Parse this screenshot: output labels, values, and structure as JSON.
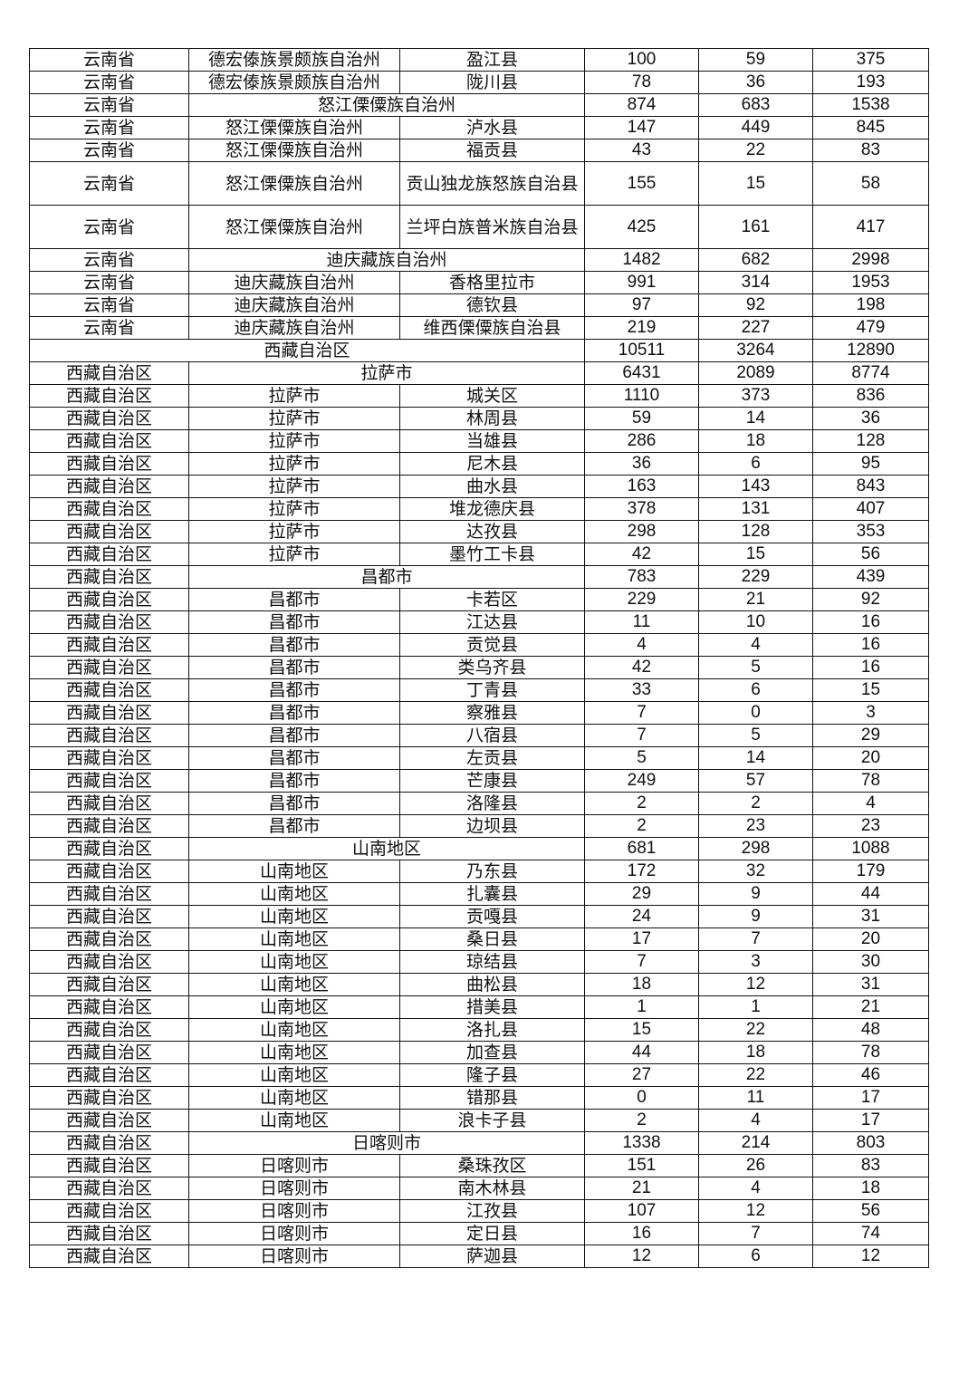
{
  "table": {
    "rows": [
      {
        "type": "full",
        "c": [
          "云南省",
          "德宏傣族景颇族自治州",
          "盈江县",
          "100",
          "59",
          "375"
        ]
      },
      {
        "type": "full",
        "c": [
          "云南省",
          "德宏傣族景颇族自治州",
          "陇川县",
          "78",
          "36",
          "193"
        ]
      },
      {
        "type": "span2",
        "c": [
          "云南省",
          "怒江傈僳族自治州",
          "874",
          "683",
          "1538"
        ]
      },
      {
        "type": "full",
        "c": [
          "云南省",
          "怒江傈僳族自治州",
          "泸水县",
          "147",
          "449",
          "845"
        ]
      },
      {
        "type": "full",
        "c": [
          "云南省",
          "怒江傈僳族自治州",
          "福贡县",
          "43",
          "22",
          "83"
        ]
      },
      {
        "type": "full",
        "tall": true,
        "c": [
          "云南省",
          "怒江傈僳族自治州",
          "贡山独龙族怒族自治县",
          "155",
          "15",
          "58"
        ]
      },
      {
        "type": "full",
        "tall": true,
        "c": [
          "云南省",
          "怒江傈僳族自治州",
          "兰坪白族普米族自治县",
          "425",
          "161",
          "417"
        ]
      },
      {
        "type": "span2",
        "c": [
          "云南省",
          "迪庆藏族自治州",
          "1482",
          "682",
          "2998"
        ]
      },
      {
        "type": "full",
        "c": [
          "云南省",
          "迪庆藏族自治州",
          "香格里拉市",
          "991",
          "314",
          "1953"
        ]
      },
      {
        "type": "full",
        "c": [
          "云南省",
          "迪庆藏族自治州",
          "德钦县",
          "97",
          "92",
          "198"
        ]
      },
      {
        "type": "full",
        "c": [
          "云南省",
          "迪庆藏族自治州",
          "维西傈僳族自治县",
          "219",
          "227",
          "479"
        ]
      },
      {
        "type": "span3",
        "c": [
          "西藏自治区",
          "10511",
          "3264",
          "12890"
        ]
      },
      {
        "type": "span2",
        "c": [
          "西藏自治区",
          "拉萨市",
          "6431",
          "2089",
          "8774"
        ]
      },
      {
        "type": "full",
        "c": [
          "西藏自治区",
          "拉萨市",
          "城关区",
          "1110",
          "373",
          "836"
        ]
      },
      {
        "type": "full",
        "c": [
          "西藏自治区",
          "拉萨市",
          "林周县",
          "59",
          "14",
          "36"
        ]
      },
      {
        "type": "full",
        "c": [
          "西藏自治区",
          "拉萨市",
          "当雄县",
          "286",
          "18",
          "128"
        ]
      },
      {
        "type": "full",
        "c": [
          "西藏自治区",
          "拉萨市",
          "尼木县",
          "36",
          "6",
          "95"
        ]
      },
      {
        "type": "full",
        "c": [
          "西藏自治区",
          "拉萨市",
          "曲水县",
          "163",
          "143",
          "843"
        ]
      },
      {
        "type": "full",
        "c": [
          "西藏自治区",
          "拉萨市",
          "堆龙德庆县",
          "378",
          "131",
          "407"
        ]
      },
      {
        "type": "full",
        "c": [
          "西藏自治区",
          "拉萨市",
          "达孜县",
          "298",
          "128",
          "353"
        ]
      },
      {
        "type": "full",
        "c": [
          "西藏自治区",
          "拉萨市",
          "墨竹工卡县",
          "42",
          "15",
          "56"
        ]
      },
      {
        "type": "span2",
        "c": [
          "西藏自治区",
          "昌都市",
          "783",
          "229",
          "439"
        ]
      },
      {
        "type": "full",
        "c": [
          "西藏自治区",
          "昌都市",
          "卡若区",
          "229",
          "21",
          "92"
        ]
      },
      {
        "type": "full",
        "c": [
          "西藏自治区",
          "昌都市",
          "江达县",
          "11",
          "10",
          "16"
        ]
      },
      {
        "type": "full",
        "c": [
          "西藏自治区",
          "昌都市",
          "贡觉县",
          "4",
          "4",
          "16"
        ]
      },
      {
        "type": "full",
        "c": [
          "西藏自治区",
          "昌都市",
          "类乌齐县",
          "42",
          "5",
          "16"
        ]
      },
      {
        "type": "full",
        "c": [
          "西藏自治区",
          "昌都市",
          "丁青县",
          "33",
          "6",
          "15"
        ]
      },
      {
        "type": "full",
        "c": [
          "西藏自治区",
          "昌都市",
          "察雅县",
          "7",
          "0",
          "3"
        ]
      },
      {
        "type": "full",
        "c": [
          "西藏自治区",
          "昌都市",
          "八宿县",
          "7",
          "5",
          "29"
        ]
      },
      {
        "type": "full",
        "c": [
          "西藏自治区",
          "昌都市",
          "左贡县",
          "5",
          "14",
          "20"
        ]
      },
      {
        "type": "full",
        "c": [
          "西藏自治区",
          "昌都市",
          "芒康县",
          "249",
          "57",
          "78"
        ]
      },
      {
        "type": "full",
        "c": [
          "西藏自治区",
          "昌都市",
          "洛隆县",
          "2",
          "2",
          "4"
        ]
      },
      {
        "type": "full",
        "c": [
          "西藏自治区",
          "昌都市",
          "边坝县",
          "2",
          "23",
          "23"
        ]
      },
      {
        "type": "span2",
        "c": [
          "西藏自治区",
          "山南地区",
          "681",
          "298",
          "1088"
        ]
      },
      {
        "type": "full",
        "c": [
          "西藏自治区",
          "山南地区",
          "乃东县",
          "172",
          "32",
          "179"
        ]
      },
      {
        "type": "full",
        "c": [
          "西藏自治区",
          "山南地区",
          "扎囊县",
          "29",
          "9",
          "44"
        ]
      },
      {
        "type": "full",
        "c": [
          "西藏自治区",
          "山南地区",
          "贡嘎县",
          "24",
          "9",
          "31"
        ]
      },
      {
        "type": "full",
        "c": [
          "西藏自治区",
          "山南地区",
          "桑日县",
          "17",
          "7",
          "20"
        ]
      },
      {
        "type": "full",
        "c": [
          "西藏自治区",
          "山南地区",
          "琼结县",
          "7",
          "3",
          "30"
        ]
      },
      {
        "type": "full",
        "c": [
          "西藏自治区",
          "山南地区",
          "曲松县",
          "18",
          "12",
          "31"
        ]
      },
      {
        "type": "full",
        "c": [
          "西藏自治区",
          "山南地区",
          "措美县",
          "1",
          "1",
          "21"
        ]
      },
      {
        "type": "full",
        "c": [
          "西藏自治区",
          "山南地区",
          "洛扎县",
          "15",
          "22",
          "48"
        ]
      },
      {
        "type": "full",
        "c": [
          "西藏自治区",
          "山南地区",
          "加查县",
          "44",
          "18",
          "78"
        ]
      },
      {
        "type": "full",
        "c": [
          "西藏自治区",
          "山南地区",
          "隆子县",
          "27",
          "22",
          "46"
        ]
      },
      {
        "type": "full",
        "c": [
          "西藏自治区",
          "山南地区",
          "错那县",
          "0",
          "11",
          "17"
        ]
      },
      {
        "type": "full",
        "c": [
          "西藏自治区",
          "山南地区",
          "浪卡子县",
          "2",
          "4",
          "17"
        ]
      },
      {
        "type": "span2",
        "c": [
          "西藏自治区",
          "日喀则市",
          "1338",
          "214",
          "803"
        ]
      },
      {
        "type": "full",
        "c": [
          "西藏自治区",
          "日喀则市",
          "桑珠孜区",
          "151",
          "26",
          "83"
        ]
      },
      {
        "type": "full",
        "c": [
          "西藏自治区",
          "日喀则市",
          "南木林县",
          "21",
          "4",
          "18"
        ]
      },
      {
        "type": "full",
        "c": [
          "西藏自治区",
          "日喀则市",
          "江孜县",
          "107",
          "12",
          "56"
        ]
      },
      {
        "type": "full",
        "c": [
          "西藏自治区",
          "日喀则市",
          "定日县",
          "16",
          "7",
          "74"
        ]
      },
      {
        "type": "full",
        "c": [
          "西藏自治区",
          "日喀则市",
          "萨迦县",
          "12",
          "6",
          "12"
        ]
      }
    ]
  }
}
